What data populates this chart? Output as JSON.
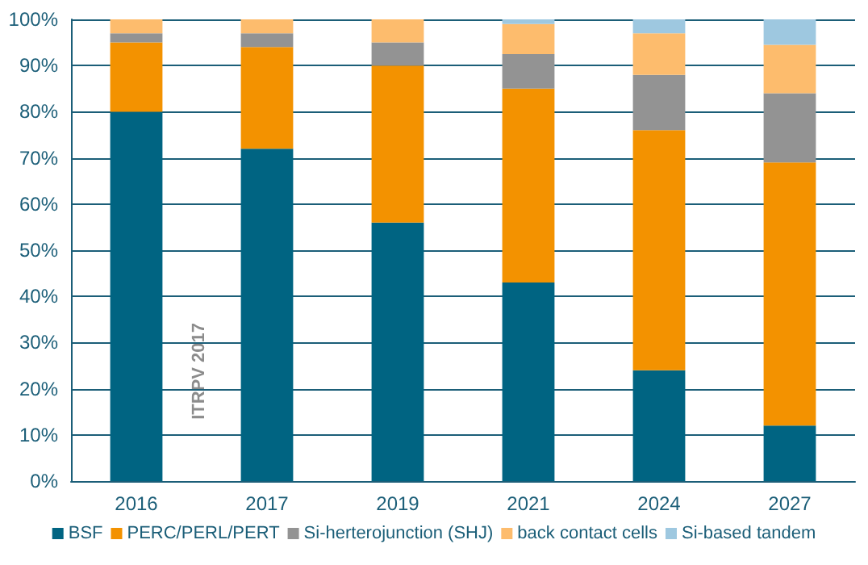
{
  "chart_data": {
    "type": "bar",
    "stacked": true,
    "categories": [
      "2016",
      "2017",
      "2019",
      "2021",
      "2024",
      "2027"
    ],
    "series": [
      {
        "name": "BSF",
        "color": "#006482",
        "values": [
          80,
          72,
          56,
          43,
          24,
          12
        ]
      },
      {
        "name": "PERC/PERL/PERT",
        "color": "#f39200",
        "values": [
          15,
          22,
          34,
          42,
          52,
          57
        ]
      },
      {
        "name": "Si-herterojunction (SHJ)",
        "color": "#939393",
        "values": [
          2,
          3,
          5,
          7.5,
          12,
          15
        ]
      },
      {
        "name": "back contact cells",
        "color": "#fdbc6d",
        "values": [
          3,
          3,
          5,
          6.5,
          9,
          10.5
        ]
      },
      {
        "name": "Si-based tandem",
        "color": "#9ec8e0",
        "values": [
          0,
          0,
          0,
          1,
          3,
          5.5
        ]
      }
    ],
    "ylim": [
      0,
      100
    ],
    "yticks": [
      {
        "value": 0,
        "label": "0%"
      },
      {
        "value": 10,
        "label": "10%"
      },
      {
        "value": 20,
        "label": "20%"
      },
      {
        "value": 30,
        "label": "30%"
      },
      {
        "value": 40,
        "label": "40%"
      },
      {
        "value": 50,
        "label": "50%"
      },
      {
        "value": 60,
        "label": "60%"
      },
      {
        "value": 70,
        "label": "70%"
      },
      {
        "value": 80,
        "label": "80%"
      },
      {
        "value": 90,
        "label": "90%"
      },
      {
        "value": 100,
        "label": "100%"
      }
    ],
    "grid": "y",
    "legend": "bottom",
    "annotations": [
      "ITRPV 2017"
    ]
  }
}
